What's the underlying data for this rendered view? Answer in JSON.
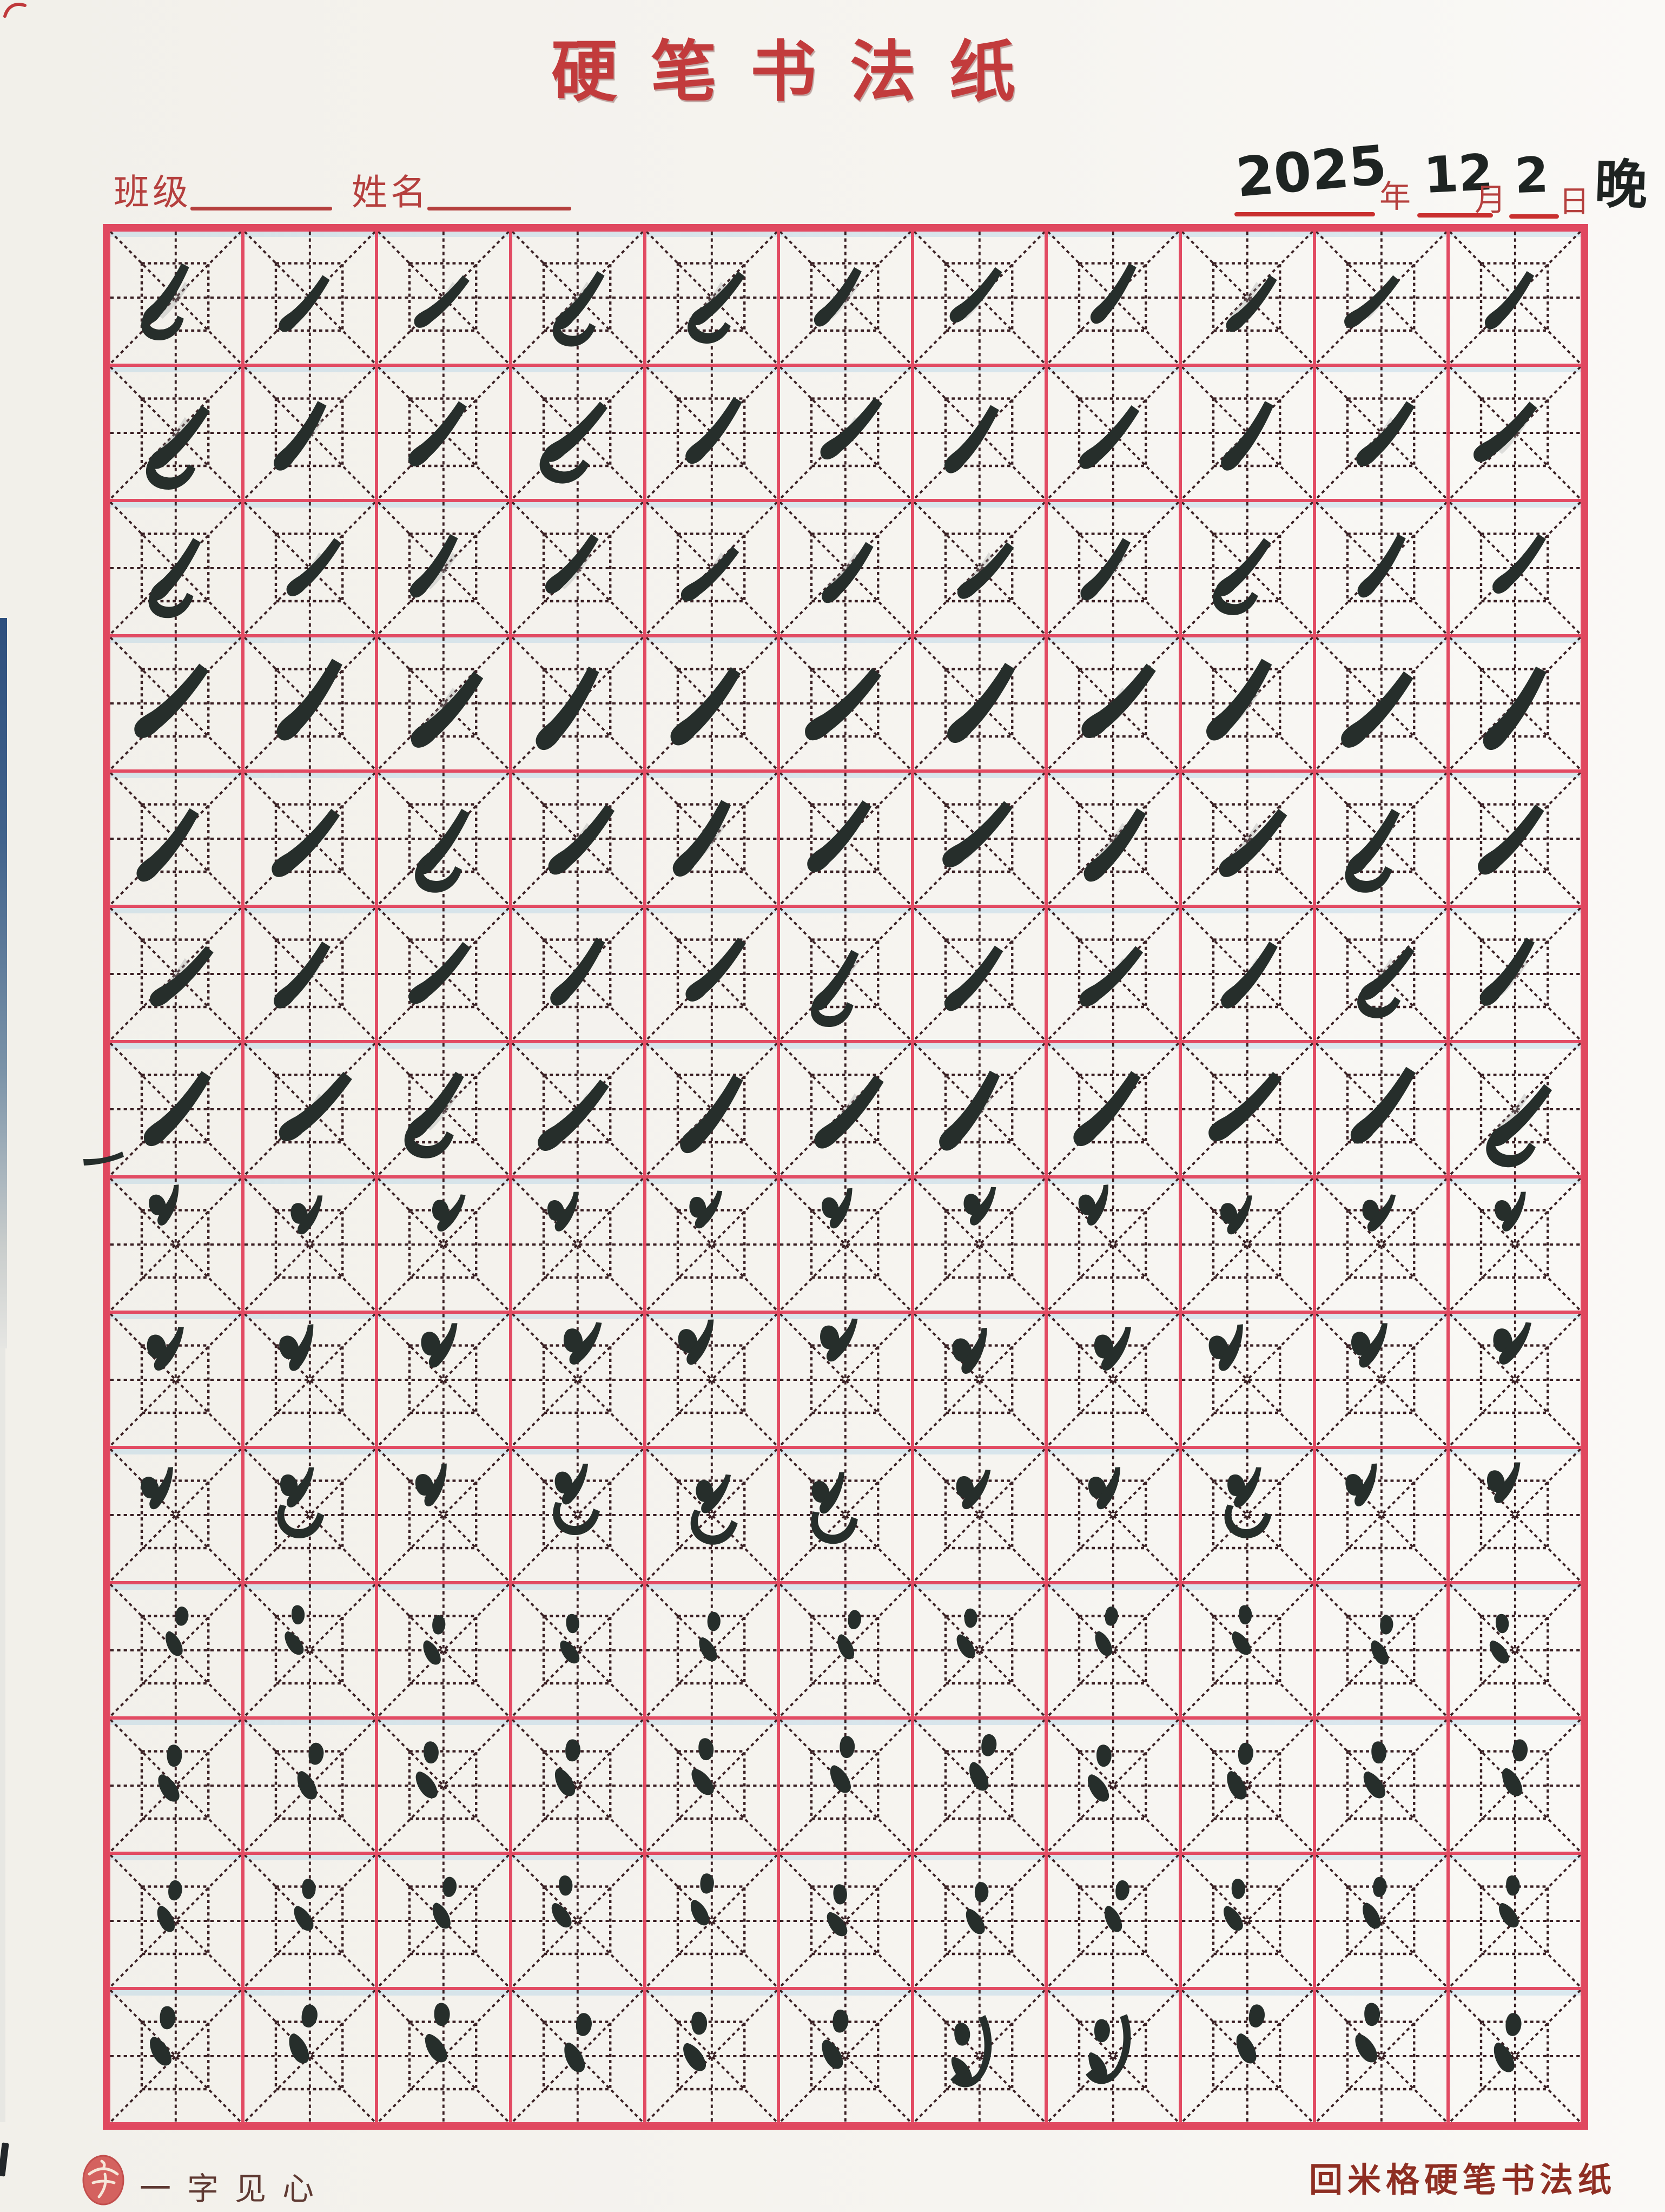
{
  "document": {
    "kind": "scanned calligraphy practice sheet",
    "title": "硬笔书法纸"
  },
  "header": {
    "class_label": "班级",
    "name_label": "姓名",
    "class_value": "",
    "name_value": "",
    "date": {
      "year": "2025",
      "year_unit": "年",
      "month": "12",
      "month_unit": "月",
      "day": "2",
      "day_unit": "日",
      "session_suffix": "晚"
    }
  },
  "footer": {
    "logo_glyph": "字",
    "brand_name": "一字见心",
    "paper_type_label": "回米格硬笔书法纸"
  },
  "grid": {
    "columns": 11,
    "rows": 14,
    "grid_type": "hui-mi-ge (回米格) practice grid",
    "stroke_legend": {
      "pie": "left-falling stroke (撇)",
      "pieCurl": "left-falling stroke with return hook",
      "so": "dot + short left-falling pair",
      "soCurve": "dot + left-falling pair with bowl hook",
      "dots2": "two-dot water radical (冫)",
      "dots2Hook": "two dots with long curved hook"
    },
    "cells": [
      [
        "pieCurl",
        "pie",
        "pie",
        "pieCurl",
        "pieCurl",
        "pie",
        "pie",
        "pie",
        "pie",
        "pie",
        "pie"
      ],
      [
        "pieCurl",
        "pie",
        "pie",
        "pieCurl",
        "pie",
        "pie",
        "pie",
        "pie",
        "pie",
        "pie",
        "pie"
      ],
      [
        "pieCurl",
        "pie",
        "pie",
        "pie",
        "pie",
        "pie",
        "pie",
        "pie",
        "pieCurl",
        "pie",
        "pie"
      ],
      [
        "pie",
        "pie",
        "pie",
        "pie",
        "pie",
        "pie",
        "pie",
        "pie",
        "pie",
        "pie",
        "pie"
      ],
      [
        "pie",
        "pie",
        "pieCurl",
        "pie",
        "pie",
        "pie",
        "pie",
        "pie",
        "pie",
        "pieCurl",
        "pie"
      ],
      [
        "pie",
        "pie",
        "pie",
        "pie",
        "pie",
        "pieCurl",
        "pie",
        "pie",
        "pie",
        "pieCurl",
        "pie"
      ],
      [
        "pie",
        "pie",
        "pieCurl",
        "pie",
        "pie",
        "pie",
        "pie",
        "pie",
        "pie",
        "pie",
        "pieCurl"
      ],
      [
        "so",
        "so",
        "so",
        "so",
        "so",
        "so",
        "so",
        "so",
        "so",
        "so",
        "so"
      ],
      [
        "so",
        "so",
        "so",
        "so",
        "so",
        "so",
        "so",
        "so",
        "so",
        "so",
        "so"
      ],
      [
        "so",
        "soCurve",
        "so",
        "soCurve",
        "soCurve",
        "soCurve",
        "so",
        "so",
        "soCurve",
        "so",
        "so"
      ],
      [
        "dots2",
        "dots2",
        "dots2",
        "dots2",
        "dots2",
        "dots2",
        "dots2",
        "dots2",
        "dots2",
        "dots2",
        "dots2"
      ],
      [
        "dots2",
        "dots2",
        "dots2",
        "dots2",
        "dots2",
        "dots2",
        "dots2",
        "dots2",
        "dots2",
        "dots2",
        "dots2"
      ],
      [
        "dots2",
        "dots2",
        "dots2",
        "dots2",
        "dots2",
        "dots2",
        "dots2",
        "dots2",
        "dots2",
        "dots2",
        "dots2"
      ],
      [
        "dots2",
        "dots2",
        "dots2",
        "dots2",
        "dots2",
        "dots2",
        "dots2Hook",
        "dots2Hook",
        "dots2",
        "dots2",
        "dots2"
      ]
    ],
    "margin_annotations": [
      {
        "name": "stray-ink-stroke",
        "near_row": 7,
        "side": "left-border"
      }
    ]
  },
  "colors": {
    "grid_red": "#e0485f",
    "dash_maroon": "#3a2024",
    "ink": "#262e2b",
    "title_red": "#c23b3c",
    "label_red": "#b5403e",
    "footer_red": "#8e2e22",
    "brand_brown": "#5f3a33",
    "logo_red": "#d4625f",
    "paper": "#f5f3ef",
    "scan_edge_blue": "#3e5f86"
  }
}
